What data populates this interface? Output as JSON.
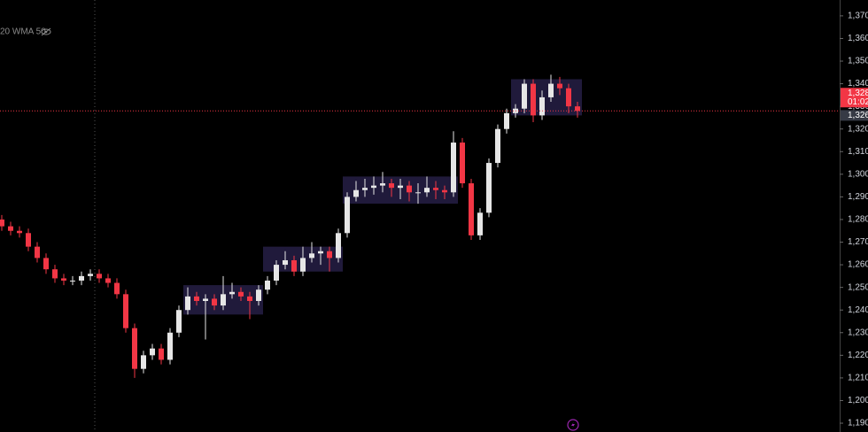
{
  "chart_data": {
    "type": "candlestick",
    "indicator_label": "20 WMA 50",
    "up_color": "#e6e6e6",
    "down_color": "#f23645",
    "zone_color": "#3a2f6b",
    "opens": [
      1280,
      1277,
      1275,
      1274,
      1268,
      1263,
      1258,
      1254,
      1253,
      1253,
      1255,
      1256,
      1254,
      1252,
      1247,
      1232,
      1214,
      1220,
      1223,
      1218,
      1230,
      1240,
      1246,
      1244,
      1245,
      1242,
      1247,
      1248,
      1246,
      1244,
      1249,
      1253,
      1260,
      1262,
      1257,
      1263,
      1265,
      1266,
      1263,
      1274,
      1290,
      1293,
      1294,
      1295,
      1296,
      1294,
      1295,
      1292,
      1292,
      1294,
      1293,
      1292,
      1314,
      1296,
      1273,
      1283,
      1305,
      1320,
      1327,
      1329,
      1340,
      1326,
      1334,
      1340,
      1338,
      1330
    ],
    "highs": [
      1282,
      1279,
      1277,
      1276,
      1270,
      1265,
      1260,
      1256,
      1255,
      1257,
      1258,
      1258,
      1256,
      1254,
      1249,
      1234,
      1222,
      1225,
      1225,
      1232,
      1242,
      1250,
      1248,
      1247,
      1247,
      1255,
      1252,
      1250,
      1248,
      1251,
      1255,
      1262,
      1266,
      1264,
      1268,
      1270,
      1268,
      1268,
      1276,
      1292,
      1297,
      1298,
      1299,
      1301,
      1298,
      1298,
      1297,
      1296,
      1299,
      1297,
      1295,
      1319,
      1316,
      1298,
      1285,
      1307,
      1322,
      1329,
      1331,
      1342,
      1342,
      1337,
      1344,
      1343,
      1340,
      1332
    ],
    "lows": [
      1275,
      1273,
      1272,
      1266,
      1261,
      1256,
      1252,
      1251,
      1251,
      1251,
      1253,
      1252,
      1250,
      1245,
      1230,
      1210,
      1212,
      1218,
      1216,
      1216,
      1228,
      1238,
      1242,
      1227,
      1240,
      1240,
      1245,
      1244,
      1236,
      1242,
      1247,
      1251,
      1258,
      1255,
      1255,
      1261,
      1260,
      1257,
      1261,
      1272,
      1288,
      1290,
      1291,
      1292,
      1290,
      1289,
      1288,
      1287,
      1290,
      1289,
      1289,
      1290,
      1294,
      1271,
      1271,
      1281,
      1303,
      1318,
      1325,
      1327,
      1323,
      1324,
      1332,
      1335,
      1327,
      1325
    ],
    "closes": [
      1277,
      1275,
      1274,
      1268,
      1263,
      1258,
      1254,
      1253,
      1253,
      1255,
      1256,
      1254,
      1252,
      1247,
      1232,
      1214,
      1220,
      1223,
      1218,
      1230,
      1240,
      1246,
      1244,
      1245,
      1242,
      1247,
      1248,
      1246,
      1244,
      1249,
      1253,
      1260,
      1262,
      1257,
      1263,
      1265,
      1266,
      1263,
      1274,
      1290,
      1293,
      1294,
      1295,
      1296,
      1294,
      1295,
      1292,
      1292,
      1294,
      1293,
      1292,
      1314,
      1296,
      1273,
      1283,
      1305,
      1320,
      1327,
      1329,
      1340,
      1326,
      1334,
      1340,
      1338,
      1330,
      1328
    ],
    "zones": [
      {
        "first": 21,
        "last": 29,
        "low": 1238,
        "high": 1251
      },
      {
        "first": 30,
        "last": 38,
        "low": 1257,
        "high": 1268
      },
      {
        "first": 39,
        "last": 51,
        "low": 1287,
        "high": 1299
      },
      {
        "first": 58,
        "last": 65,
        "low": 1326,
        "high": 1342
      }
    ],
    "ylim": [
      1186.1,
      1377
    ],
    "yticks": [
      {
        "value": 1190,
        "label": "1,190"
      },
      {
        "value": 1200,
        "label": "1,200"
      },
      {
        "value": 1210,
        "label": "1,210"
      },
      {
        "value": 1220,
        "label": "1,220"
      },
      {
        "value": 1230,
        "label": "1,230"
      },
      {
        "value": 1240,
        "label": "1,240"
      },
      {
        "value": 1250,
        "label": "1,250"
      },
      {
        "value": 1260,
        "label": "1,260"
      },
      {
        "value": 1270,
        "label": "1,270"
      },
      {
        "value": 1280,
        "label": "1,280"
      },
      {
        "value": 1290,
        "label": "1,290"
      },
      {
        "value": 1300,
        "label": "1,300"
      },
      {
        "value": 1310,
        "label": "1,310"
      },
      {
        "value": 1320,
        "label": "1,320"
      },
      {
        "value": 1330,
        "label": "1,330"
      },
      {
        "value": 1340,
        "label": "1,340"
      },
      {
        "value": 1350,
        "label": "1,350"
      },
      {
        "value": 1360,
        "label": "1,360"
      },
      {
        "value": 1370,
        "label": "1,370"
      }
    ],
    "last_price": {
      "value": 1328,
      "label": "1,328"
    },
    "countdown": "01:02",
    "crosshair": {
      "value": 1326,
      "label": "1,326"
    }
  }
}
